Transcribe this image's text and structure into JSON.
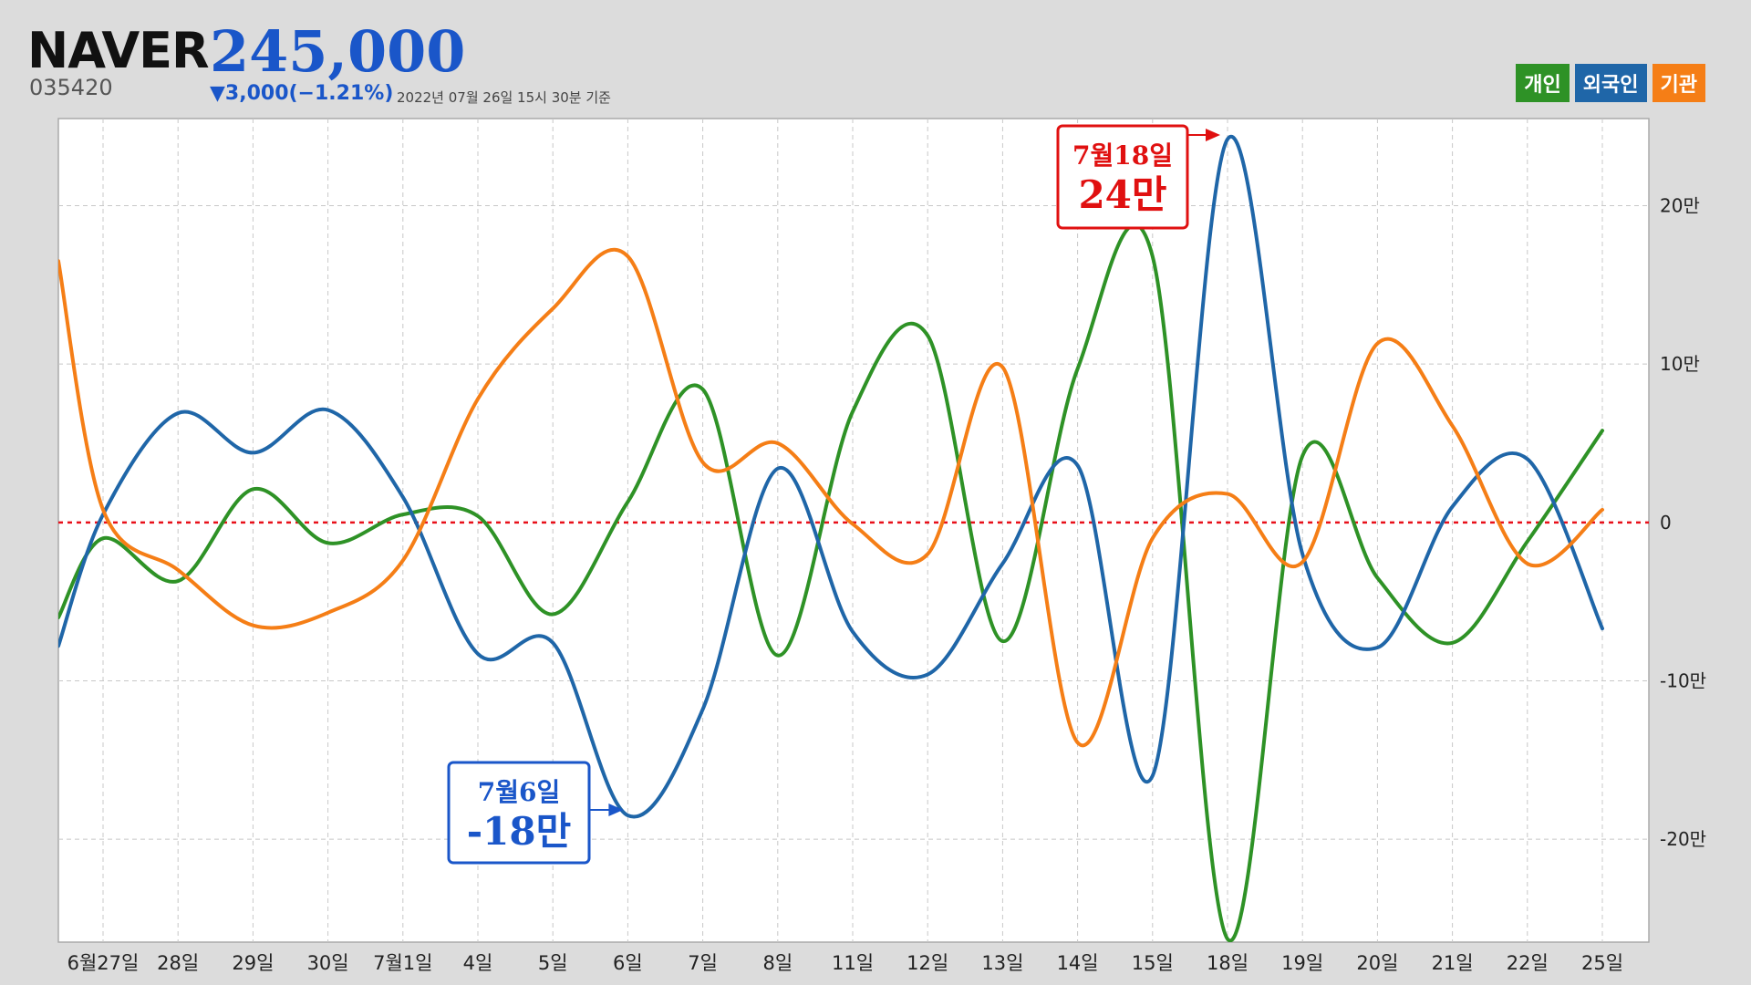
{
  "header": {
    "name": "NAVER",
    "price": "245,000",
    "code": "035420",
    "change": "▼3,000(−1.21%)",
    "as_of": "2022년 07월 26일 15시 30분 기준"
  },
  "legend": [
    {
      "label": "개인",
      "color": "#2e9226"
    },
    {
      "label": "외국인",
      "color": "#1f66a8"
    },
    {
      "label": "기관",
      "color": "#f57e16"
    }
  ],
  "annotations": [
    {
      "line1": "7월18일",
      "line2": "24만",
      "color": "#e01010",
      "series": "외국인",
      "x_index": 15
    },
    {
      "line1": "7월6일",
      "line2": "-18만",
      "color": "#1a56c9",
      "series": "외국인",
      "x_index": 7
    }
  ],
  "chart_data": {
    "type": "line",
    "categories": [
      "6월27일",
      "28일",
      "29일",
      "30일",
      "7월1일",
      "4일",
      "5일",
      "6일",
      "7일",
      "8일",
      "11일",
      "12일",
      "13일",
      "14일",
      "15일",
      "18일",
      "19일",
      "20일",
      "21일",
      "22일",
      "25일"
    ],
    "y_ticks": [
      {
        "value": 20,
        "label": "20만"
      },
      {
        "value": 10,
        "label": "10만"
      },
      {
        "value": 0,
        "label": "0"
      },
      {
        "value": -10,
        "label": "-10만"
      },
      {
        "value": -20,
        "label": "-20만"
      }
    ],
    "ylim": [
      -26.5,
      25.5
    ],
    "y_unit": "만",
    "grid": true,
    "zero_line": true,
    "series": [
      {
        "name": "개인",
        "color": "#2e9226",
        "values": [
          -1,
          -3.7,
          2.1,
          -1.3,
          0.5,
          0.4,
          -5.8,
          1.3,
          8.4,
          -8.4,
          7.0,
          11.8,
          -7.5,
          9.7,
          16.8,
          -26.3,
          4.2,
          -3.5,
          -7.6,
          -1.2,
          5.8
        ]
      },
      {
        "name": "외국인",
        "color": "#1f66a8",
        "values": [
          0.5,
          6.9,
          4.4,
          7.1,
          1.6,
          -8.3,
          -7.6,
          -18.5,
          -11.8,
          3.4,
          -6.9,
          -9.6,
          -2.6,
          3.6,
          -16.0,
          24.2,
          -2.0,
          -7.9,
          1.0,
          4.0,
          -6.7
        ]
      },
      {
        "name": "기관",
        "color": "#f57e16",
        "values": [
          0.8,
          -3.0,
          -6.5,
          -5.7,
          -2.4,
          7.8,
          13.5,
          16.8,
          3.8,
          5.0,
          -0.1,
          -2.0,
          9.8,
          -13.9,
          -1.0,
          1.8,
          -2.5,
          11.3,
          6.1,
          -2.6,
          0.8
        ]
      }
    ]
  }
}
